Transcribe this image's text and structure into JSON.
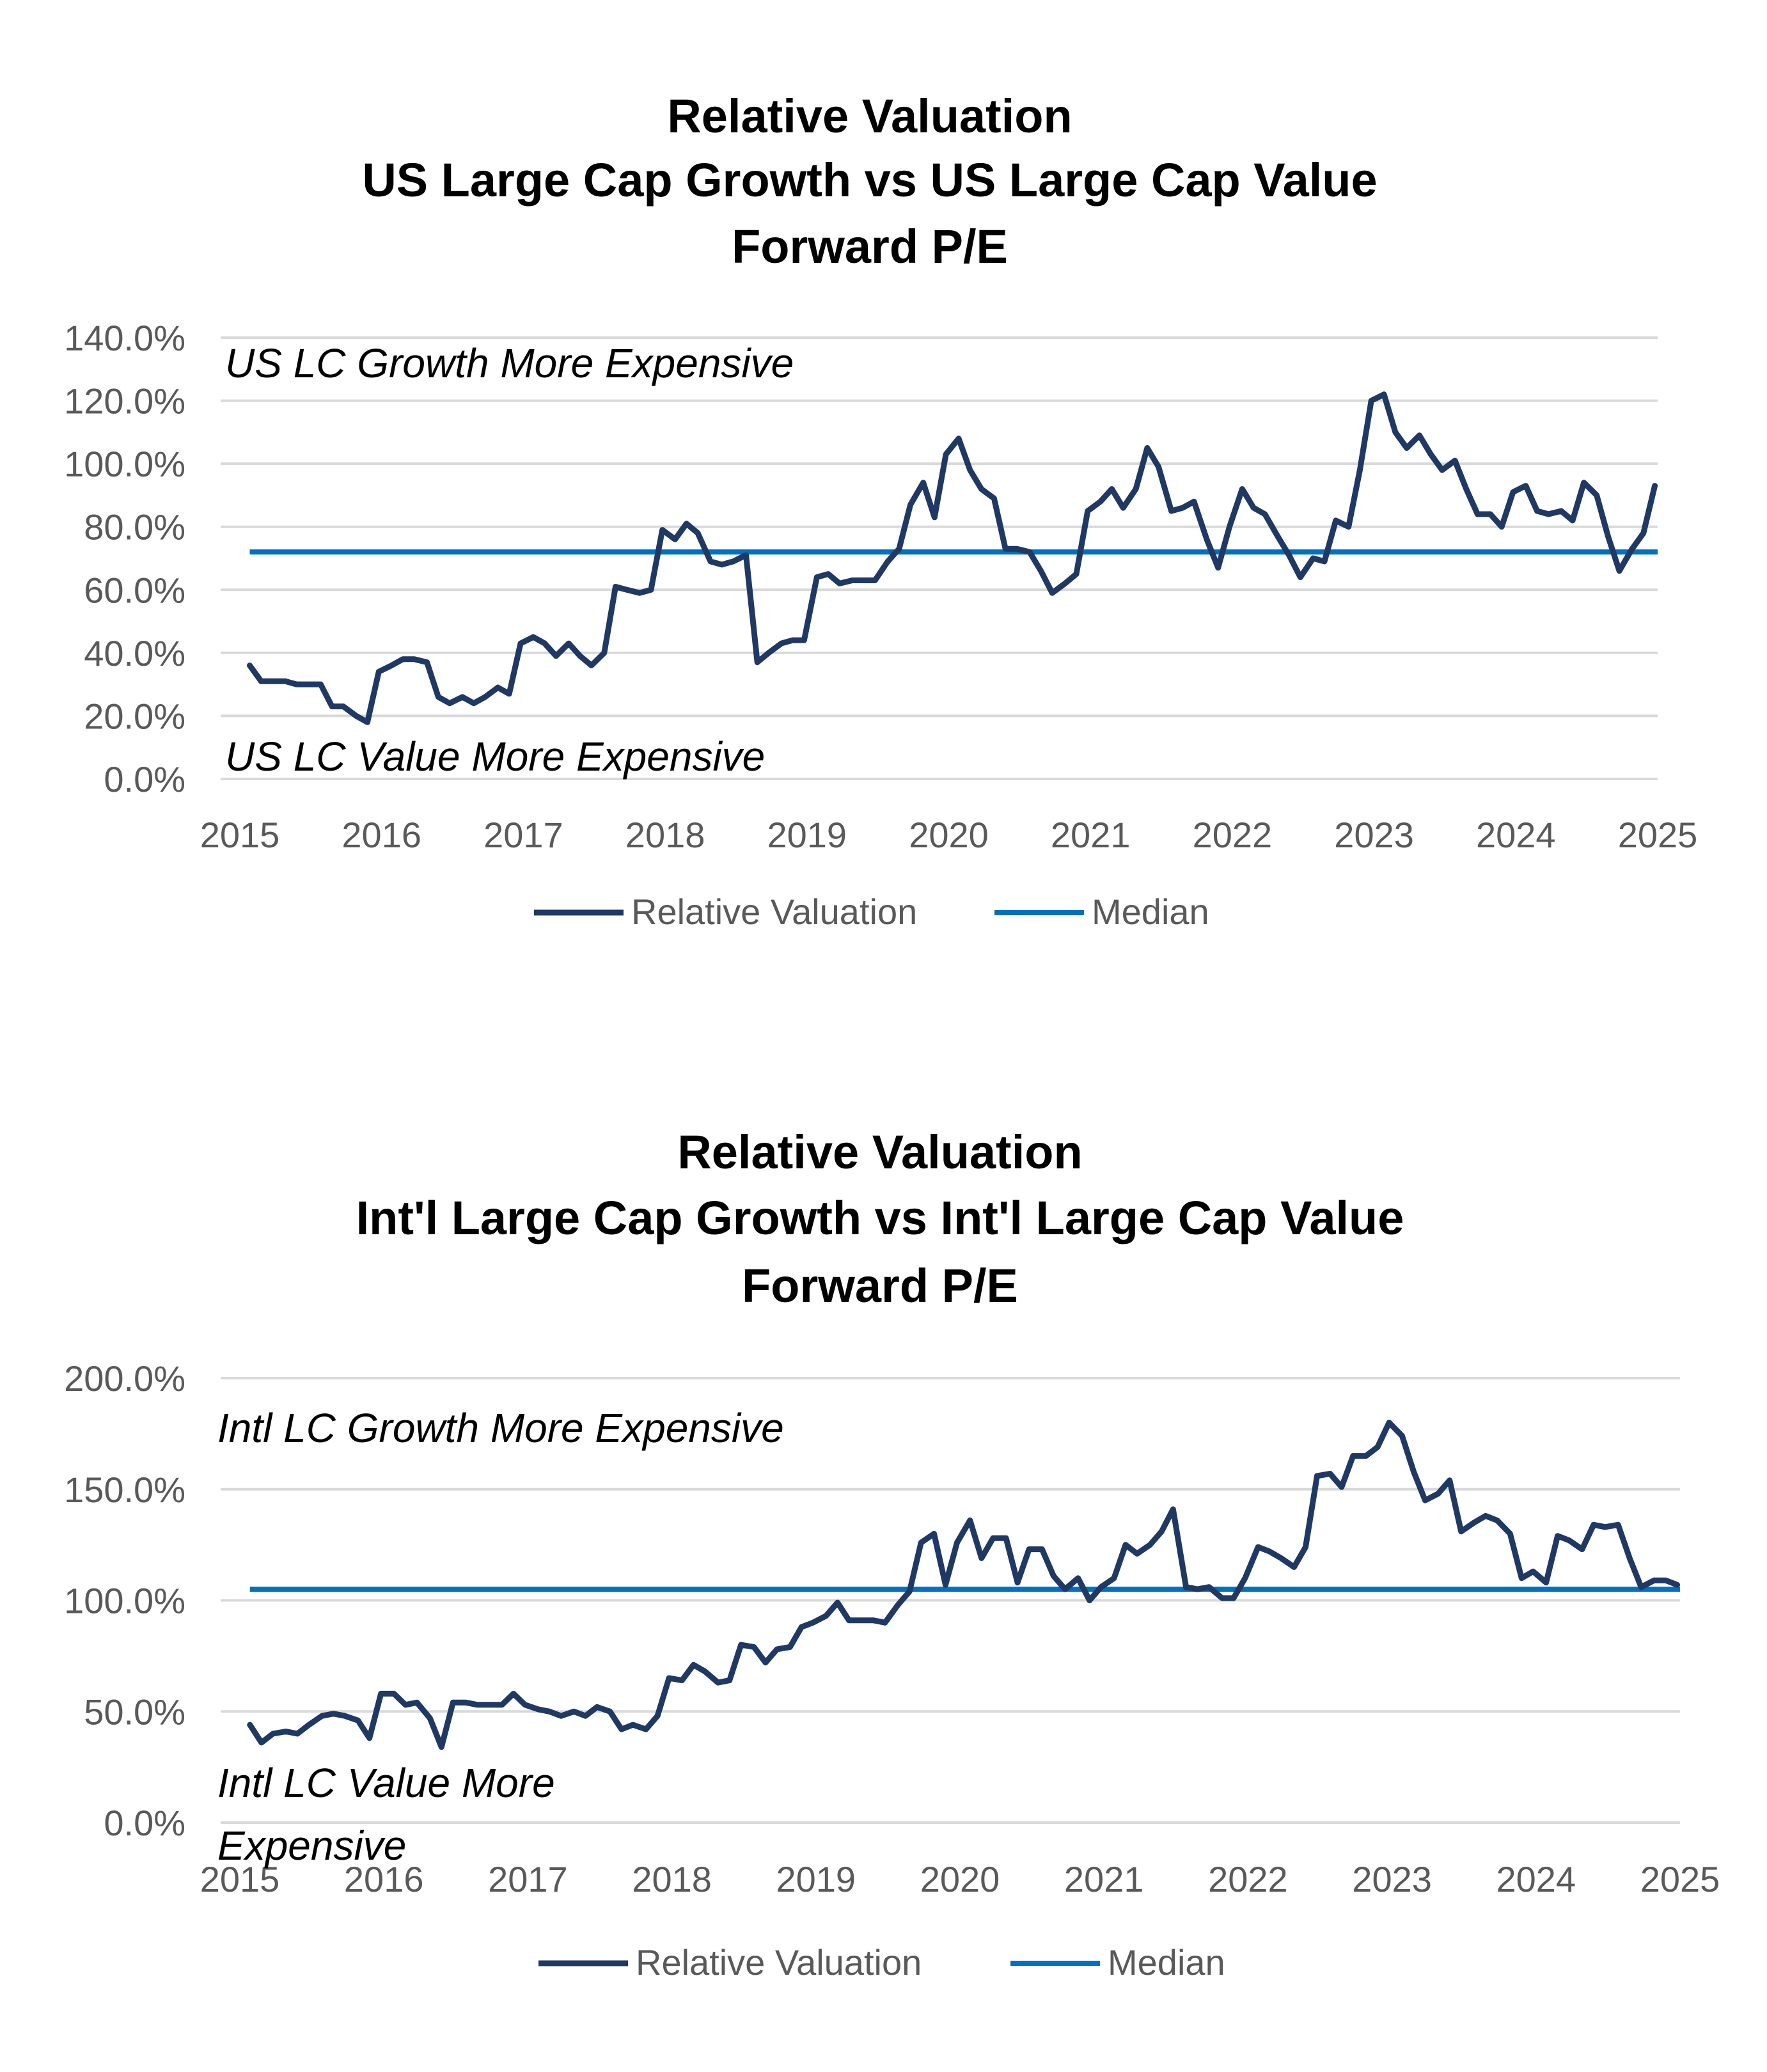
{
  "colors": {
    "series": "#1f3864",
    "median": "#0070c0",
    "grid": "#d9d9d9",
    "tick_text": "#595959"
  },
  "chart_data": [
    {
      "type": "line",
      "title": [
        "Relative Valuation",
        "US Large Cap Growth vs US Large Cap Value",
        "Forward P/E"
      ],
      "xlabel": "",
      "ylabel": "",
      "xlim": [
        2015,
        2025
      ],
      "ylim": [
        0,
        140
      ],
      "y_ticks": [
        0,
        20,
        40,
        60,
        80,
        100,
        120,
        140
      ],
      "y_tick_labels": [
        "0.0%",
        "20.0%",
        "40.0%",
        "60.0%",
        "80.0%",
        "100.0%",
        "120.0%",
        "140.0%"
      ],
      "x_ticks": [
        2015,
        2016,
        2017,
        2018,
        2019,
        2020,
        2021,
        2022,
        2023,
        2024,
        2025
      ],
      "x_tick_labels": [
        "2015",
        "2016",
        "2017",
        "2018",
        "2019",
        "2020",
        "2021",
        "2022",
        "2023",
        "2024",
        "2025"
      ],
      "annotations": {
        "top": "US LC Growth More Expensive",
        "bottom": "US LC Value More Expensive"
      },
      "median": 72,
      "legend": [
        "Relative Valuation",
        "Median"
      ],
      "series": [
        {
          "name": "Relative Valuation",
          "x": [
            2015.07,
            2015.15,
            2015.23,
            2015.32,
            2015.4,
            2015.48,
            2015.57,
            2015.65,
            2015.73,
            2015.82,
            2015.9,
            2015.98,
            2016.07,
            2016.15,
            2016.23,
            2016.32,
            2016.4,
            2016.48,
            2016.57,
            2016.65,
            2016.73,
            2016.82,
            2016.9,
            2016.98,
            2017.07,
            2017.15,
            2017.23,
            2017.32,
            2017.4,
            2017.48,
            2017.57,
            2017.65,
            2017.73,
            2017.82,
            2017.9,
            2017.98,
            2018.07,
            2018.15,
            2018.23,
            2018.32,
            2018.4,
            2018.48,
            2018.57,
            2018.65,
            2018.73,
            2018.82,
            2018.9,
            2018.98,
            2019.07,
            2019.15,
            2019.23,
            2019.32,
            2019.4,
            2019.48,
            2019.57,
            2019.65,
            2019.73,
            2019.82,
            2019.9,
            2019.98,
            2020.07,
            2020.15,
            2020.23,
            2020.32,
            2020.4,
            2020.48,
            2020.57,
            2020.65,
            2020.73,
            2020.82,
            2020.9,
            2020.98,
            2021.07,
            2021.15,
            2021.23,
            2021.32,
            2021.4,
            2021.48,
            2021.57,
            2021.65,
            2021.73,
            2021.82,
            2021.9,
            2021.98,
            2022.07,
            2022.15,
            2022.23,
            2022.32,
            2022.4,
            2022.48,
            2022.57,
            2022.65,
            2022.73,
            2022.82,
            2022.9,
            2022.98,
            2023.07,
            2023.15,
            2023.23,
            2023.32,
            2023.4,
            2023.48,
            2023.57,
            2023.65,
            2023.73,
            2023.82,
            2023.9,
            2023.98,
            2024.07,
            2024.15,
            2024.23,
            2024.32,
            2024.4,
            2024.48,
            2024.57,
            2024.65,
            2024.73,
            2024.82,
            2024.9,
            2024.98
          ],
          "values": [
            36,
            31,
            31,
            31,
            30,
            30,
            30,
            23,
            23,
            20,
            18,
            34,
            36,
            38,
            38,
            37,
            26,
            24,
            26,
            24,
            26,
            29,
            27,
            43,
            45,
            43,
            39,
            43,
            39,
            36,
            40,
            61,
            60,
            59,
            60,
            79,
            76,
            81,
            78,
            69,
            68,
            69,
            71,
            37,
            40,
            43,
            44,
            44,
            64,
            65,
            62,
            63,
            63,
            63,
            69,
            73,
            87,
            94,
            83,
            103,
            108,
            98,
            92,
            89,
            73,
            73,
            72,
            66,
            59,
            62,
            65,
            85,
            88,
            92,
            86,
            92,
            105,
            99,
            85,
            86,
            88,
            76,
            67,
            80,
            92,
            86,
            84,
            77,
            71,
            64,
            70,
            69,
            82,
            80,
            98,
            120,
            122,
            110,
            105,
            109,
            103,
            98,
            101,
            92,
            84,
            84,
            80,
            91,
            93,
            85,
            84,
            85,
            82,
            94,
            90,
            77,
            66,
            73,
            78,
            93
          ]
        },
        {
          "name": "Median",
          "values": [
            72,
            72
          ]
        }
      ]
    },
    {
      "type": "line",
      "title": [
        "Relative Valuation",
        "Int'l Large Cap Growth vs Int'l Large Cap Value",
        "Forward P/E"
      ],
      "xlabel": "",
      "ylabel": "",
      "xlim": [
        2015,
        2025
      ],
      "ylim": [
        0,
        200
      ],
      "y_ticks": [
        0,
        50,
        100,
        150,
        200
      ],
      "y_tick_labels": [
        "0.0%",
        "50.0%",
        "100.0%",
        "150.0%",
        "200.0%"
      ],
      "x_ticks": [
        2015,
        2016,
        2017,
        2018,
        2019,
        2020,
        2021,
        2022,
        2023,
        2024,
        2025
      ],
      "x_tick_labels": [
        "2015",
        "2016",
        "2017",
        "2018",
        "2019",
        "2020",
        "2021",
        "2022",
        "2023",
        "2024",
        "2025"
      ],
      "annotations": {
        "top": "Intl LC Growth More Expensive",
        "bottom": "Intl LC Value More Expensive"
      },
      "median": 105,
      "legend": [
        "Relative Valuation",
        "Median"
      ],
      "series": [
        {
          "name": "Relative Valuation",
          "x": [
            2015.07,
            2015.15,
            2015.23,
            2015.32,
            2015.4,
            2015.48,
            2015.57,
            2015.65,
            2015.73,
            2015.82,
            2015.9,
            2015.98,
            2016.07,
            2016.15,
            2016.23,
            2016.32,
            2016.4,
            2016.48,
            2016.57,
            2016.65,
            2016.73,
            2016.82,
            2016.9,
            2016.98,
            2017.07,
            2017.15,
            2017.23,
            2017.32,
            2017.4,
            2017.48,
            2017.57,
            2017.65,
            2017.73,
            2017.82,
            2017.9,
            2017.98,
            2018.07,
            2018.15,
            2018.23,
            2018.32,
            2018.4,
            2018.48,
            2018.57,
            2018.65,
            2018.73,
            2018.82,
            2018.9,
            2018.98,
            2019.07,
            2019.15,
            2019.23,
            2019.32,
            2019.4,
            2019.48,
            2019.57,
            2019.65,
            2019.73,
            2019.82,
            2019.9,
            2019.98,
            2020.07,
            2020.15,
            2020.23,
            2020.32,
            2020.4,
            2020.48,
            2020.57,
            2020.65,
            2020.73,
            2020.82,
            2020.9,
            2020.98,
            2021.07,
            2021.15,
            2021.23,
            2021.32,
            2021.4,
            2021.48,
            2021.57,
            2021.65,
            2021.73,
            2021.82,
            2021.9,
            2021.98,
            2022.07,
            2022.15,
            2022.23,
            2022.32,
            2022.4,
            2022.48,
            2022.57,
            2022.65,
            2022.73,
            2022.82,
            2022.9,
            2022.98,
            2023.07,
            2023.15,
            2023.23,
            2023.32,
            2023.4,
            2023.48,
            2023.57,
            2023.65,
            2023.73,
            2023.82,
            2023.9,
            2023.98,
            2024.07,
            2024.15,
            2024.23,
            2024.32,
            2024.4,
            2024.48,
            2024.57,
            2024.65,
            2024.73,
            2024.82,
            2024.9,
            2024.98
          ],
          "values": [
            44,
            36,
            40,
            41,
            40,
            44,
            48,
            49,
            48,
            46,
            38,
            58,
            58,
            53,
            54,
            47,
            34,
            54,
            54,
            53,
            53,
            53,
            58,
            53,
            51,
            50,
            48,
            50,
            48,
            52,
            50,
            42,
            44,
            42,
            48,
            65,
            64,
            71,
            68,
            63,
            64,
            80,
            79,
            72,
            78,
            79,
            88,
            90,
            93,
            99,
            91,
            91,
            91,
            90,
            98,
            104,
            126,
            130,
            107,
            126,
            136,
            119,
            128,
            128,
            108,
            123,
            123,
            111,
            105,
            110,
            100,
            106,
            110,
            125,
            121,
            125,
            131,
            141,
            106,
            105,
            106,
            101,
            101,
            110,
            124,
            122,
            119,
            115,
            124,
            156,
            157,
            151,
            165,
            165,
            169,
            180,
            174,
            158,
            145,
            148,
            154,
            131,
            135,
            138,
            136,
            130,
            110,
            113,
            108,
            129,
            127,
            123,
            134,
            133,
            134,
            119,
            106,
            109,
            109,
            107
          ]
        },
        {
          "name": "Median",
          "values": [
            105,
            105
          ]
        }
      ]
    }
  ]
}
